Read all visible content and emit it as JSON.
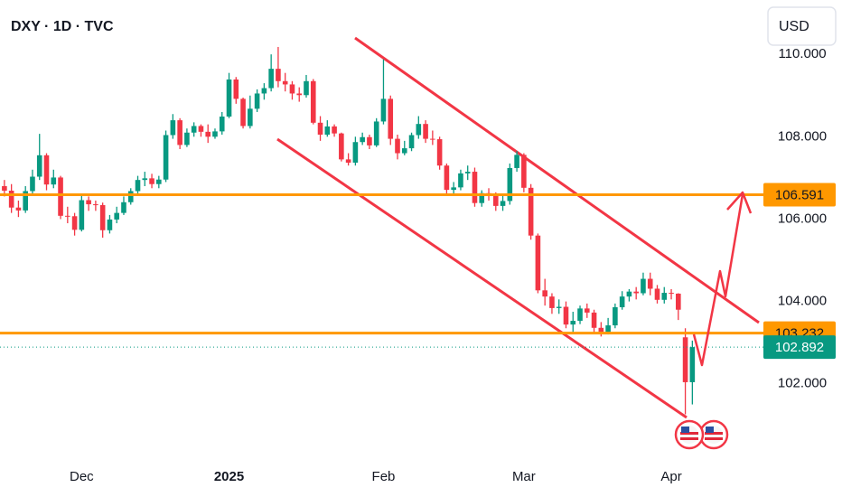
{
  "chart_data": {
    "type": "candlestick",
    "title": "DXY · 1D · TVC",
    "currency": "USD",
    "categories": [
      null,
      null,
      null,
      null,
      null,
      null,
      null,
      null,
      null,
      null,
      null,
      "Dec",
      null,
      null,
      null,
      null,
      null,
      null,
      null,
      null,
      null,
      null,
      null,
      null,
      null,
      null,
      null,
      null,
      null,
      null,
      null,
      null,
      "2025",
      null,
      null,
      null,
      null,
      null,
      null,
      null,
      null,
      null,
      null,
      null,
      null,
      null,
      null,
      null,
      null,
      null,
      null,
      null,
      null,
      null,
      "Feb",
      null,
      null,
      null,
      null,
      null,
      null,
      null,
      null,
      null,
      null,
      null,
      null,
      null,
      null,
      null,
      null,
      null,
      null,
      null,
      "Mar",
      null,
      null,
      null,
      null,
      null,
      null,
      null,
      null,
      null,
      null,
      null,
      null,
      null,
      null,
      null,
      null,
      null,
      null,
      null,
      null,
      "Apr",
      null,
      null,
      null
    ],
    "open": [
      106.8,
      106.69,
      106.28,
      106.21,
      106.68,
      107.03,
      107.55,
      106.84,
      107.01,
      106.08,
      106.07,
      105.74,
      106.46,
      106.36,
      106.34,
      105.73,
      105.99,
      106.15,
      106.41,
      106.68,
      106.95,
      106.99,
      106.85,
      106.96,
      108.04,
      108.4,
      107.8,
      108.1,
      108.26,
      108.12,
      108.0,
      108.13,
      108.49,
      109.39,
      108.92,
      108.26,
      108.68,
      109.05,
      109.18,
      109.65,
      109.35,
      109.27,
      109.05,
      109.01,
      109.35,
      108.34,
      108.05,
      108.25,
      108.08,
      107.45,
      107.37,
      107.87,
      107.99,
      107.79,
      108.37,
      108.92,
      107.95,
      107.6,
      107.72,
      108.04,
      108.31,
      107.95,
      107.94,
      107.3,
      106.71,
      106.77,
      107.11,
      107.15,
      106.39,
      106.63,
      106.59,
      106.32,
      106.44,
      107.24,
      107.56,
      106.76,
      105.6,
      104.27,
      104.12,
      103.84,
      103.87,
      103.44,
      103.53,
      103.83,
      103.73,
      103.36,
      103.26,
      103.42,
      103.86,
      104.12,
      104.24,
      104.2,
      104.55,
      104.31,
      104.04,
      104.21,
      104.19,
      103.13,
      102.04
    ],
    "high": [
      106.95,
      106.85,
      106.45,
      106.8,
      107.2,
      108.07,
      107.6,
      107.2,
      107.05,
      106.3,
      106.15,
      106.6,
      106.55,
      106.45,
      106.4,
      106.1,
      106.3,
      106.55,
      106.75,
      107.05,
      107.15,
      107.1,
      107.05,
      108.15,
      108.55,
      108.45,
      108.2,
      108.35,
      108.3,
      108.3,
      108.2,
      108.6,
      109.55,
      109.45,
      108.95,
      109.0,
      109.15,
      109.3,
      110.0,
      110.18,
      109.55,
      109.35,
      109.2,
      109.5,
      109.4,
      108.5,
      108.4,
      108.3,
      108.1,
      107.6,
      108.0,
      108.1,
      108.05,
      108.45,
      109.88,
      109.0,
      108.05,
      107.9,
      108.1,
      108.5,
      108.4,
      108.15,
      108.0,
      107.35,
      106.9,
      107.2,
      107.3,
      107.25,
      106.7,
      106.75,
      106.65,
      106.6,
      107.35,
      107.65,
      107.6,
      106.85,
      105.65,
      104.55,
      104.2,
      104.05,
      104.0,
      103.75,
      103.9,
      103.95,
      103.8,
      103.5,
      103.6,
      103.95,
      104.25,
      104.3,
      104.35,
      104.7,
      104.7,
      104.4,
      104.35,
      104.3,
      104.2,
      103.35,
      103.05
    ],
    "low": [
      106.55,
      106.15,
      106.05,
      106.15,
      106.6,
      106.95,
      106.7,
      106.75,
      106.0,
      105.9,
      105.6,
      105.7,
      106.2,
      106.2,
      105.55,
      105.65,
      105.9,
      106.1,
      106.35,
      106.6,
      106.8,
      106.75,
      106.75,
      106.9,
      107.95,
      107.7,
      107.75,
      108.0,
      108.0,
      107.85,
      107.95,
      108.05,
      108.45,
      108.8,
      108.2,
      108.2,
      108.6,
      108.9,
      109.1,
      109.2,
      109.1,
      108.9,
      108.85,
      108.95,
      108.3,
      107.9,
      108.0,
      108.0,
      107.4,
      107.3,
      107.3,
      107.8,
      107.7,
      107.75,
      108.3,
      107.8,
      107.45,
      107.55,
      107.65,
      107.95,
      107.85,
      107.8,
      107.2,
      106.6,
      106.6,
      106.7,
      106.95,
      106.3,
      106.3,
      106.45,
      106.2,
      106.2,
      106.35,
      107.15,
      106.65,
      105.5,
      104.2,
      103.9,
      103.7,
      103.7,
      103.35,
      103.25,
      103.45,
      103.6,
      103.25,
      103.15,
      103.2,
      103.35,
      103.8,
      104.0,
      104.05,
      104.15,
      104.15,
      103.95,
      103.95,
      104.05,
      103.55,
      101.26,
      101.5
    ],
    "close": [
      106.69,
      106.28,
      106.21,
      106.68,
      107.03,
      107.55,
      106.84,
      107.01,
      106.08,
      106.07,
      105.74,
      106.46,
      106.36,
      106.34,
      105.73,
      105.99,
      106.15,
      106.41,
      106.68,
      106.95,
      106.99,
      106.85,
      106.96,
      108.04,
      108.4,
      107.8,
      108.1,
      108.26,
      108.12,
      108.0,
      108.13,
      108.49,
      109.39,
      108.92,
      108.26,
      108.68,
      109.05,
      109.18,
      109.65,
      109.35,
      109.27,
      109.05,
      109.01,
      109.35,
      108.34,
      108.05,
      108.25,
      108.08,
      107.45,
      107.37,
      107.87,
      107.99,
      107.79,
      108.37,
      108.92,
      107.95,
      107.6,
      107.72,
      108.04,
      108.31,
      107.95,
      107.94,
      107.3,
      106.71,
      106.77,
      107.11,
      107.15,
      106.39,
      106.63,
      106.59,
      106.32,
      106.44,
      107.24,
      107.56,
      106.76,
      105.6,
      104.27,
      104.12,
      103.84,
      103.87,
      103.44,
      103.53,
      103.83,
      103.73,
      103.36,
      103.26,
      103.42,
      103.86,
      104.12,
      104.24,
      104.2,
      104.55,
      104.31,
      104.04,
      104.21,
      104.19,
      103.8,
      102.04,
      102.892
    ],
    "up_color": "#089981",
    "down_color": "#f23645",
    "ylim": [
      100.13,
      111.32
    ],
    "yticks": [
      {
        "value": 102,
        "label": "102.000"
      },
      {
        "value": 104,
        "label": "104.000"
      },
      {
        "value": 106,
        "label": "106.000"
      },
      {
        "value": 108,
        "label": "108.000"
      },
      {
        "value": 110,
        "label": "110.000"
      }
    ],
    "levels": [
      106.591,
      103.232
    ],
    "level_color": "#ff9800"
  }
}
